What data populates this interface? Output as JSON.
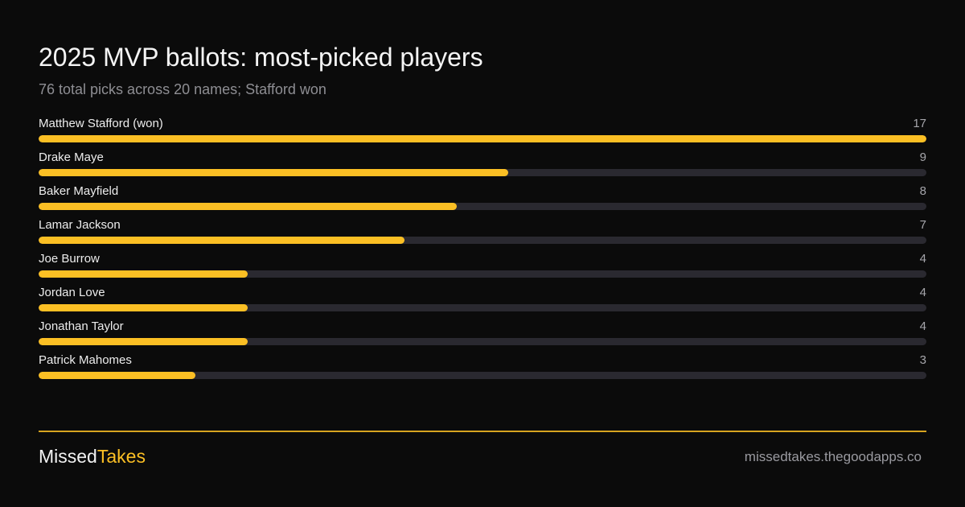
{
  "title": "2025 MVP ballots: most-picked players",
  "subtitle": "76 total picks across 20 names; Stafford won",
  "chart_data": {
    "type": "bar",
    "orientation": "horizontal",
    "title": "2025 MVP ballots: most-picked players",
    "subtitle": "76 total picks across 20 names; Stafford won",
    "categories": [
      "Matthew Stafford (won)",
      "Drake Maye",
      "Baker Mayfield",
      "Lamar Jackson",
      "Joe Burrow",
      "Jordan Love",
      "Jonathan Taylor",
      "Patrick Mahomes"
    ],
    "values": [
      17,
      9,
      8,
      7,
      4,
      4,
      4,
      3
    ],
    "xlim": [
      0,
      17
    ],
    "bar_color": "#fbbf24",
    "track_color": "#2a2930",
    "grid": false,
    "legend": "none"
  },
  "footer": {
    "brand_part1": "Missed",
    "brand_part2": "Takes",
    "site": "missedtakes.thegoodapps.co"
  },
  "colors": {
    "background": "#0b0b0b",
    "accent": "#fbbf24",
    "text": "#f2f2f2",
    "muted": "#8e8e93"
  }
}
